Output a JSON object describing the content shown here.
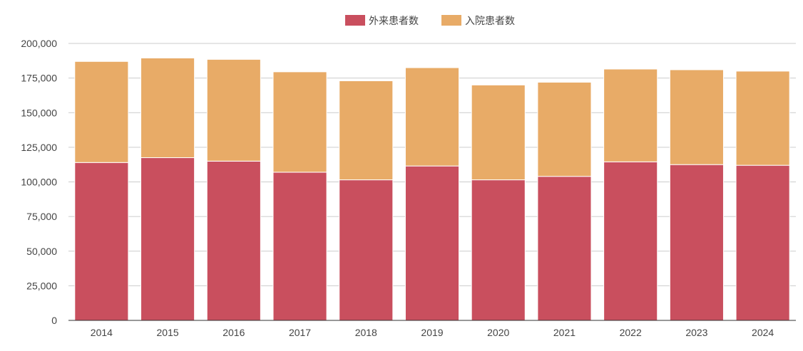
{
  "chart_data": {
    "type": "bar",
    "stacked": true,
    "categories": [
      "2014",
      "2015",
      "2016",
      "2017",
      "2018",
      "2019",
      "2020",
      "2021",
      "2022",
      "2023",
      "2024"
    ],
    "series": [
      {
        "name": "外来患者数",
        "color": "#c94f5e",
        "values": [
          114000,
          117500,
          115000,
          107000,
          101500,
          111500,
          101500,
          104000,
          114500,
          112500,
          112000
        ]
      },
      {
        "name": "入院患者数",
        "color": "#e8ab67",
        "values": [
          73000,
          72000,
          73500,
          72500,
          71500,
          71000,
          68500,
          68000,
          67000,
          68500,
          68000
        ]
      }
    ],
    "ylim": [
      0,
      200000
    ],
    "yticks": [
      "0",
      "25,000",
      "50,000",
      "75,000",
      "100,000",
      "125,000",
      "150,000",
      "175,000",
      "200,000"
    ],
    "ytick_values": [
      0,
      25000,
      50000,
      75000,
      100000,
      125000,
      150000,
      175000,
      200000
    ],
    "grid": true,
    "legend_position": "top-center"
  }
}
